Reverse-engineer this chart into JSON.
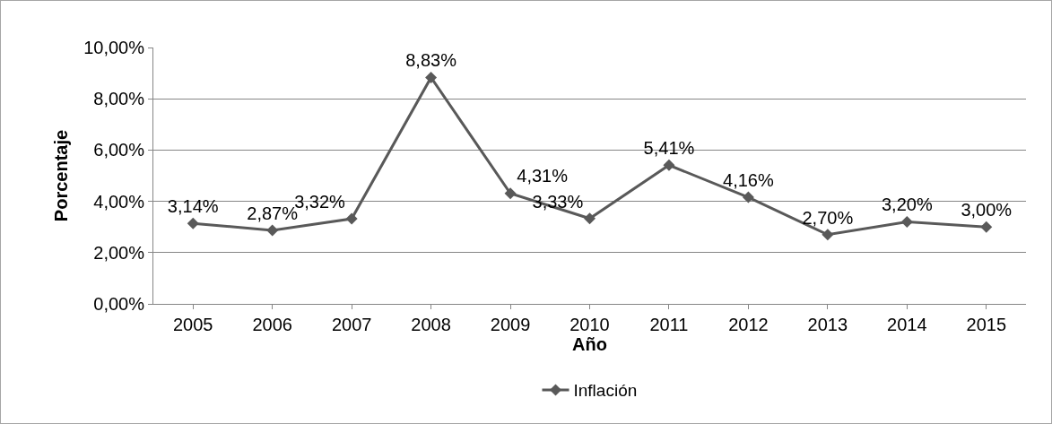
{
  "chart_data": {
    "type": "line",
    "xlabel": "Año",
    "ylabel": "Porcentaje",
    "categories": [
      "2005",
      "2006",
      "2007",
      "2008",
      "2009",
      "2010",
      "2011",
      "2012",
      "2013",
      "2014",
      "2015"
    ],
    "series": [
      {
        "name": "Inflación",
        "color": "#595959",
        "values": [
          3.14,
          2.87,
          3.32,
          8.83,
          4.31,
          3.33,
          5.41,
          4.16,
          2.7,
          3.2,
          3.0
        ],
        "value_labels": [
          "3,14%",
          "2,87%",
          "3,32%",
          "8,83%",
          "4,31%",
          "3,33%",
          "5,41%",
          "4,16%",
          "2,70%",
          "3,20%",
          "3,00%"
        ]
      }
    ],
    "ylim": [
      0,
      10
    ],
    "yticks": [
      {
        "value": 0,
        "label": "0,00%"
      },
      {
        "value": 2,
        "label": "2,00%"
      },
      {
        "value": 4,
        "label": "4,00%"
      },
      {
        "value": 6,
        "label": "6,00%"
      },
      {
        "value": 8,
        "label": "8,00%"
      },
      {
        "value": 10,
        "label": "10,00%"
      }
    ],
    "grid": "y",
    "legend": "bottom",
    "marker": "diamond",
    "line_style": "solid"
  }
}
